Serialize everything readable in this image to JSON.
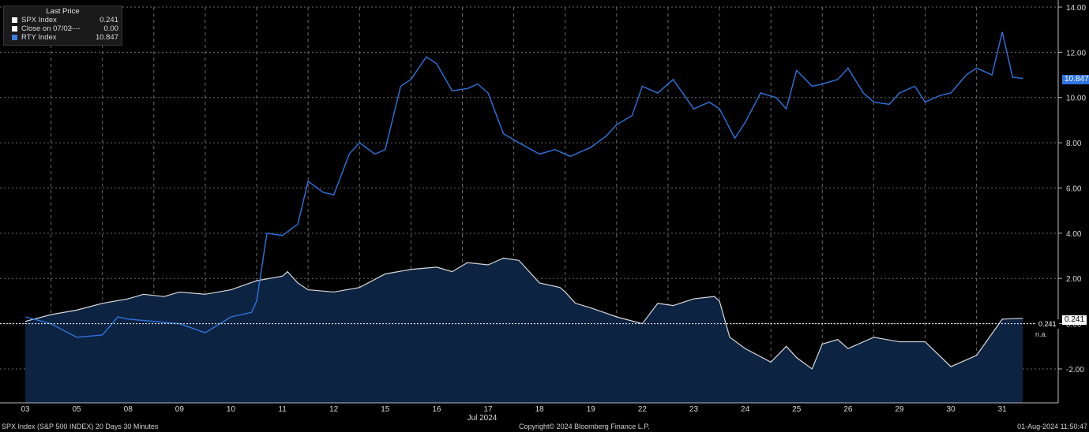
{
  "legend": {
    "title": "Last Price",
    "items": [
      {
        "name": "SPX Index",
        "mid": "",
        "value": "0.241",
        "color": "#ffffff"
      },
      {
        "name": "Close on 07/02",
        "mid": "----",
        "value": "0.00",
        "color": "#ffffff"
      },
      {
        "name": "RTY Index",
        "mid": "",
        "value": "10.847",
        "color": "#3b7be0"
      }
    ]
  },
  "footer": {
    "left": "SPX Index (S&P 500 INDEX) 20 Days 30 Minutes",
    "center": "Copyright© 2024 Bloomberg Finance L.P.",
    "right": "01-Aug-2024 11:50:47"
  },
  "tags": {
    "rty_last": "10.847",
    "spx_last": "0.241",
    "spx_inline": "0.241",
    "na": "n.a."
  },
  "chart_data": {
    "type": "line",
    "month_label": "Jul 2024",
    "x_ticks": [
      "03",
      "05",
      "08",
      "09",
      "10",
      "11",
      "12",
      "15",
      "16",
      "17",
      "18",
      "19",
      "22",
      "23",
      "24",
      "25",
      "26",
      "29",
      "30",
      "31"
    ],
    "y_ticks": [
      "14.00",
      "12.00",
      "10.00",
      "8.00",
      "6.00",
      "4.00",
      "2.00",
      "0.00",
      "-2.00"
    ],
    "ylim": [
      -3.5,
      14.0
    ],
    "colors": {
      "spx_line": "#d9d9d9",
      "spx_fill": "#0d2342",
      "rty_line": "#2f74e0",
      "close_line": "#ffffff"
    },
    "series": [
      {
        "name": "SPX Index",
        "x": [
          0,
          0.5,
          1,
          1.5,
          2,
          2.3,
          2.7,
          3,
          3.5,
          4,
          4.5,
          5,
          5.1,
          5.3,
          5.5,
          6,
          6.5,
          7,
          7.5,
          8,
          8.3,
          8.6,
          9,
          9.3,
          9.6,
          10,
          10.4,
          10.5,
          10.7,
          11,
          11.5,
          12,
          12.3,
          12.6,
          13,
          13.4,
          13.5,
          13.7,
          14,
          14.5,
          14.8,
          15,
          15.3,
          15.5,
          15.8,
          16,
          16.5,
          17,
          17.5,
          18,
          18.5,
          19,
          19.4
        ],
        "values": [
          0.1,
          0.4,
          0.6,
          0.9,
          1.1,
          1.3,
          1.2,
          1.4,
          1.3,
          1.5,
          1.9,
          2.1,
          2.3,
          1.8,
          1.5,
          1.4,
          1.6,
          2.2,
          2.4,
          2.5,
          2.3,
          2.7,
          2.6,
          2.9,
          2.8,
          1.8,
          1.6,
          1.4,
          0.9,
          0.7,
          0.3,
          0.0,
          0.9,
          0.8,
          1.1,
          1.2,
          1.0,
          -0.6,
          -1.1,
          -1.7,
          -1.0,
          -1.5,
          -2.0,
          -0.9,
          -0.7,
          -1.1,
          -0.6,
          -0.8,
          -0.8,
          -1.9,
          -1.4,
          0.2,
          0.241
        ]
      },
      {
        "name": "RTY Index",
        "x": [
          0,
          0.5,
          1,
          1.5,
          1.8,
          2,
          2.5,
          3,
          3.5,
          4,
          4.4,
          4.5,
          4.7,
          5,
          5.3,
          5.5,
          5.8,
          6,
          6.3,
          6.5,
          6.8,
          7,
          7.3,
          7.5,
          7.8,
          8,
          8.3,
          8.6,
          8.8,
          9,
          9.3,
          9.6,
          10,
          10.3,
          10.6,
          11,
          11.3,
          11.5,
          11.8,
          12,
          12.3,
          12.6,
          13,
          13.3,
          13.5,
          13.8,
          14,
          14.3,
          14.6,
          14.8,
          15,
          15.3,
          15.5,
          15.8,
          16,
          16.3,
          16.5,
          16.8,
          17,
          17.3,
          17.5,
          17.8,
          18,
          18.3,
          18.5,
          18.8,
          19,
          19.2,
          19.4
        ],
        "values": [
          0.3,
          0.0,
          -0.6,
          -0.5,
          0.3,
          0.2,
          0.1,
          0.0,
          -0.4,
          0.3,
          0.5,
          1.0,
          4.0,
          3.9,
          4.4,
          6.3,
          5.8,
          5.7,
          7.5,
          8.0,
          7.5,
          7.7,
          10.5,
          10.8,
          11.8,
          11.5,
          10.3,
          10.4,
          10.6,
          10.2,
          8.4,
          8.0,
          7.5,
          7.7,
          7.4,
          7.8,
          8.3,
          8.8,
          9.2,
          10.5,
          10.2,
          10.8,
          9.5,
          9.8,
          9.5,
          8.2,
          8.9,
          10.2,
          10.0,
          9.5,
          11.2,
          10.5,
          10.6,
          10.8,
          11.3,
          10.2,
          9.8,
          9.7,
          10.2,
          10.5,
          9.8,
          10.1,
          10.2,
          11.0,
          11.3,
          11.0,
          12.9,
          10.9,
          10.847
        ]
      },
      {
        "name": "Close on 07/02",
        "x": [
          0,
          19.4
        ],
        "values": [
          0.0,
          0.0
        ]
      }
    ]
  }
}
